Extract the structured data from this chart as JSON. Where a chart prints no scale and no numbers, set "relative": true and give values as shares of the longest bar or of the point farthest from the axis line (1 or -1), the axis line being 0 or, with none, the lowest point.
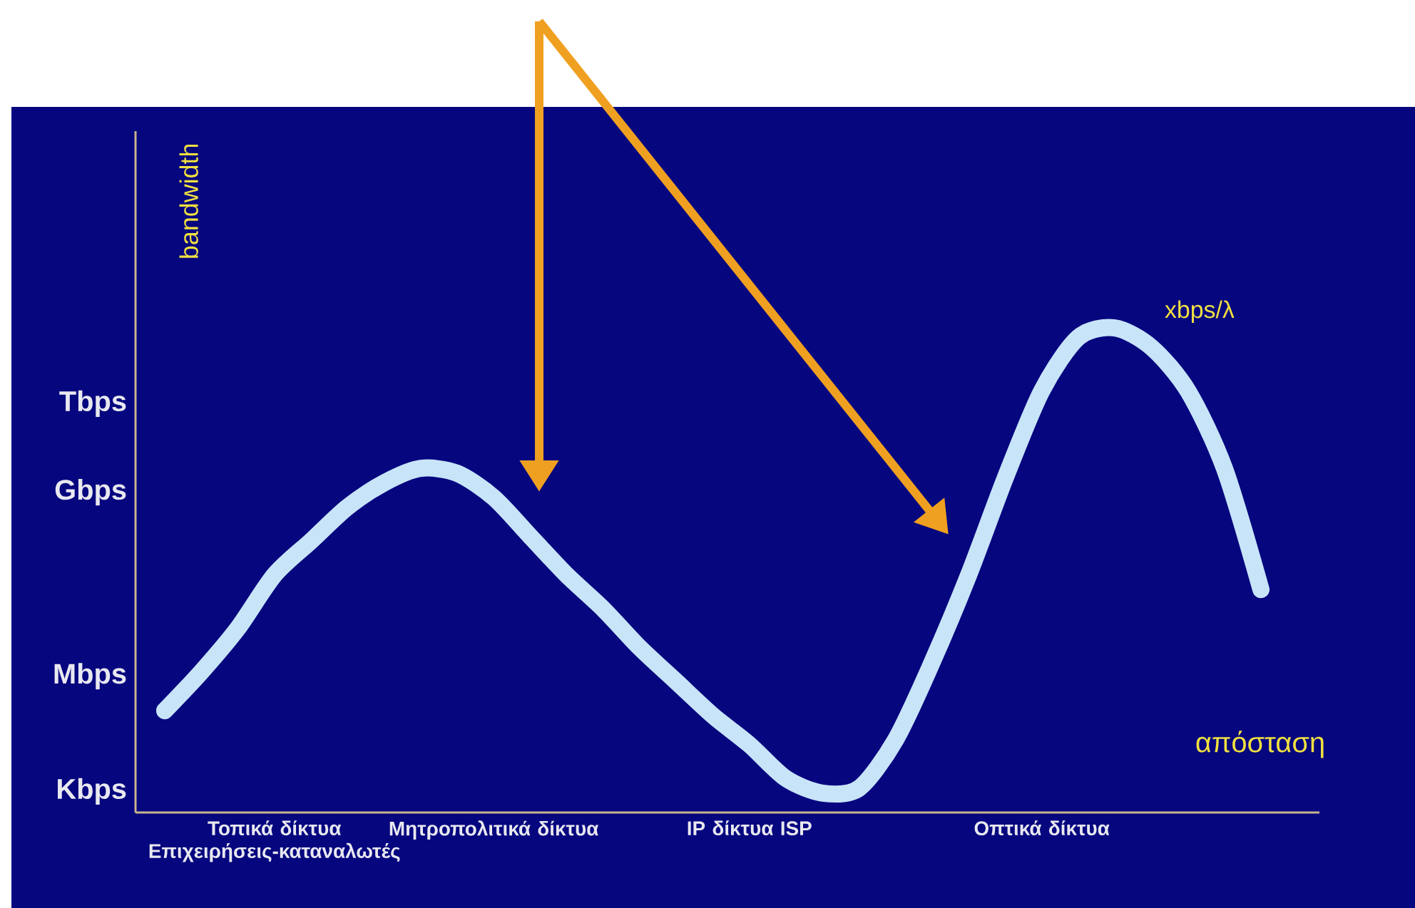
{
  "chart_data": {
    "type": "line",
    "relative": true,
    "xlabel": "απόσταση",
    "ylabel": "bandwidth",
    "annotations": [
      "Kbps",
      "Mbps",
      "Gbps",
      "Tbps",
      "xbps/λ"
    ],
    "categories": [
      null,
      null,
      null,
      "Τοπικά δίκτυα Επιχειρήσεις-καταναλωτές",
      null,
      null,
      null,
      null,
      null,
      "Μητροπολιτικά δίκτυα",
      null,
      null,
      null,
      null,
      null,
      null,
      "IP δίκτυα ISP",
      null,
      null,
      null,
      null,
      null,
      null,
      null,
      "Οπτικά δίκτυα",
      null,
      null,
      null,
      null,
      null,
      null
    ],
    "grid": false,
    "series": [
      {
        "color": "#c8e4f8",
        "values": [
          0.21,
          0.29,
          0.38,
          0.49,
          0.56,
          0.63,
          0.68,
          0.71,
          0.7,
          0.65,
          0.57,
          0.49,
          0.42,
          0.34,
          0.27,
          0.2,
          0.14,
          0.07,
          0.04,
          0.05,
          0.15,
          0.31,
          0.49,
          0.69,
          0.87,
          0.98,
          1,
          0.96,
          0.87,
          0.71,
          0.46
        ]
      }
    ]
  }
}
